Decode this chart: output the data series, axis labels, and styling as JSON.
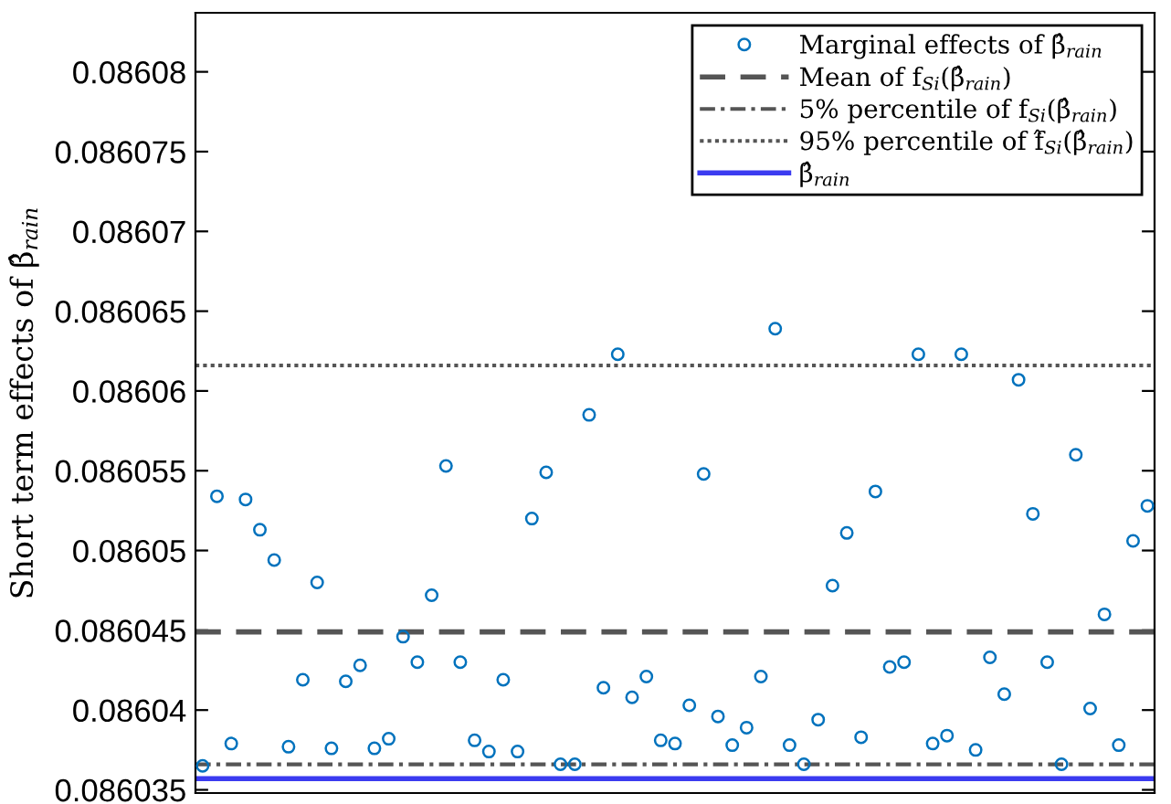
{
  "chart_data": {
    "type": "scatter",
    "ylabel": "Short term effects of β̂$_{rain}$",
    "categories": [
      null,
      null,
      null,
      null,
      null,
      null,
      null,
      null,
      null,
      null,
      null,
      null,
      null,
      null,
      null,
      null,
      null,
      null,
      null,
      null,
      null,
      null,
      null,
      null,
      null,
      null,
      null,
      null,
      null,
      null,
      null,
      null,
      null,
      null,
      null,
      null,
      null,
      null,
      null,
      null,
      null,
      null,
      null,
      null,
      null,
      null,
      null,
      null,
      null,
      null,
      null,
      null,
      null,
      null,
      null,
      null,
      null,
      null,
      null,
      null,
      null,
      null,
      null,
      null,
      null,
      null,
      null
    ],
    "series": [
      {
        "name": "Marginal effects of β̂$_{rain}$",
        "color": "#0072bd",
        "values": [
          0.0860365,
          0.0860534,
          0.0860379,
          0.0860532,
          0.0860513,
          0.0860494,
          0.0860377,
          0.0860419,
          0.086048,
          0.0860376,
          0.0860418,
          0.0860428,
          0.0860376,
          0.0860382,
          0.0860446,
          0.086043,
          0.0860472,
          0.0860553,
          0.086043,
          0.0860381,
          0.0860374,
          0.0860419,
          0.0860374,
          0.086052,
          0.0860549,
          0.0860366,
          0.0860366,
          0.0860585,
          0.0860414,
          0.0860623,
          0.0860408,
          0.0860421,
          0.0860381,
          0.0860379,
          0.0860403,
          0.0860548,
          0.0860396,
          0.0860378,
          0.0860389,
          0.0860421,
          0.0860639,
          0.0860378,
          0.0860366,
          0.0860394,
          0.0860478,
          0.0860511,
          0.0860383,
          0.0860537,
          0.0860427,
          0.086043,
          0.0860623,
          0.0860379,
          0.0860384,
          0.0860623,
          0.0860375,
          0.0860433,
          0.086041,
          0.0860607,
          0.0860523,
          0.086043,
          0.0860366,
          0.086056,
          0.0860401,
          0.086046,
          0.0860378,
          0.0860506,
          0.0860528
        ]
      }
    ],
    "marker": "circle",
    "ref_lines": [
      {
        "axis": "y",
        "value": 0.0860449,
        "label": "Mean of f$_{Si}$(β̂$_{rain}$)",
        "color": "#555555",
        "line_style": "dashed"
      },
      {
        "axis": "y",
        "value": 0.0860366,
        "label": "5% percentile of f$_{Si}$(β̂$_{rain}$)",
        "color": "#555555",
        "line_style": "dashdot"
      },
      {
        "axis": "y",
        "value": 0.0860616,
        "label": "95% percentile of f̂$_{Si}$(β̂$_{rain}$)",
        "color": "#555555",
        "line_style": "dotted"
      },
      {
        "axis": "y",
        "value": 0.0860357,
        "label": "β̂$_{rain}$",
        "color": "#3b3bf0",
        "line_style": "solid"
      }
    ],
    "ylim": [
      0.0860348,
      0.0860837
    ],
    "yticks": [
      0.086035,
      0.08604,
      0.086045,
      0.08605,
      0.086055,
      0.08606,
      0.086065,
      0.08607,
      0.086075,
      0.08608
    ],
    "grid": false,
    "legend": "top right"
  }
}
